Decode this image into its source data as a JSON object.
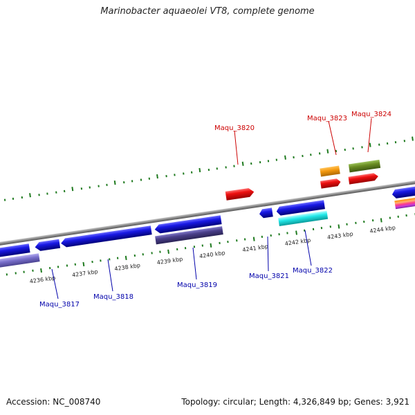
{
  "title": "Marinobacter aquaeolei VT8, complete genome",
  "footer": {
    "accession": "Accession: NC_008740",
    "topology": "Topology: circular; Length: 4,326,849 bp; Genes: 3,921"
  },
  "genome_map": {
    "kbp_ticks": [
      "4236 kbp",
      "4237 kbp",
      "4238 kbp",
      "4239 kbp",
      "4240 kbp",
      "4241 kbp",
      "4242 kbp",
      "4243 kbp",
      "4244 kbp"
    ],
    "forward_genes": [
      {
        "label": "Maqu_3820",
        "color": "#dd1010"
      },
      {
        "label": "Maqu_3823",
        "color": "#ee1111"
      },
      {
        "label": "Maqu_3824",
        "color": "#ee1111"
      }
    ],
    "reverse_genes": [
      {
        "label": "Maqu_3817",
        "color": "#1a1ae6"
      },
      {
        "label": "Maqu_3818",
        "color": "#1a1ae6"
      },
      {
        "label": "Maqu_3819",
        "color": "#1a1ae6"
      },
      {
        "label": "Maqu_3821",
        "color": "#1a1ae6"
      },
      {
        "label": "Maqu_3822",
        "color": "#1a1ae6"
      }
    ],
    "colors": {
      "forward_label": "#cc0000",
      "reverse_label": "#0000aa",
      "tick": "#1f7a1f",
      "backbone": "#888888",
      "cyan_feature": "#22e8e8",
      "orange_feature": "#f59a10",
      "olive_feature": "#6b8e23",
      "purple_feature": "#4a3f8a",
      "lavender_feature": "#7a70cc"
    }
  }
}
